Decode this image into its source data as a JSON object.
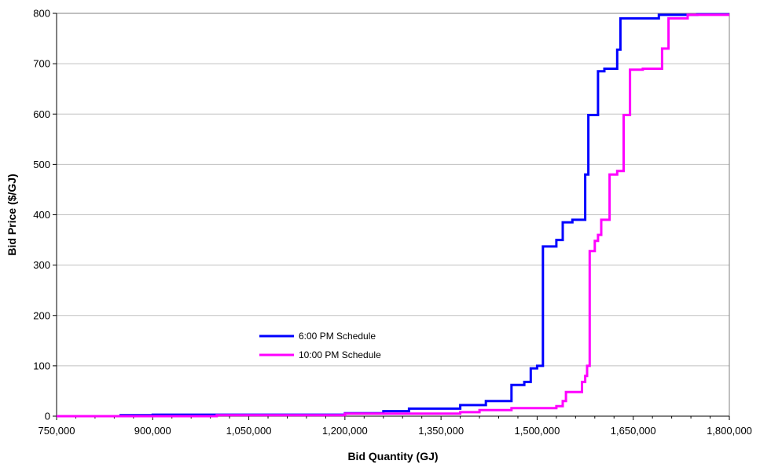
{
  "chart_data": {
    "type": "line",
    "title": "",
    "xlabel": "Bid Quantity (GJ)",
    "ylabel": "Bid Price ($/GJ)",
    "xlim": [
      750000,
      1800000
    ],
    "ylim": [
      0,
      800
    ],
    "x_ticks": [
      750000,
      900000,
      1050000,
      1200000,
      1350000,
      1500000,
      1650000,
      1800000
    ],
    "x_tick_labels": [
      "750,000",
      "900,000",
      "1,050,000",
      "1,200,000",
      "1,350,000",
      "1,500,000",
      "1,650,000",
      "1,800,000"
    ],
    "y_ticks": [
      0,
      100,
      200,
      300,
      400,
      500,
      600,
      700,
      800
    ],
    "y_tick_labels": [
      "0",
      "100",
      "200",
      "300",
      "400",
      "500",
      "600",
      "700",
      "800"
    ],
    "grid": "horizontal",
    "legend_position": "center-left",
    "step": true,
    "series": [
      {
        "name": "6:00 PM Schedule",
        "color": "#0000FF",
        "x": [
          750000,
          850000,
          850000,
          900000,
          900000,
          1200000,
          1200000,
          1260000,
          1260000,
          1300000,
          1300000,
          1380000,
          1380000,
          1420000,
          1420000,
          1460000,
          1460000,
          1480000,
          1480000,
          1490000,
          1490000,
          1500000,
          1500000,
          1509000,
          1509000,
          1530000,
          1530000,
          1540000,
          1540000,
          1555000,
          1555000,
          1575000,
          1575000,
          1580000,
          1580000,
          1595000,
          1595000,
          1605000,
          1605000,
          1625000,
          1625000,
          1630000,
          1630000,
          1690000,
          1690000,
          1750000,
          1750000,
          1800000
        ],
        "y": [
          0,
          0,
          2,
          2,
          3,
          3,
          6,
          6,
          10,
          10,
          15,
          15,
          22,
          22,
          30,
          30,
          62,
          62,
          68,
          68,
          95,
          95,
          100,
          100,
          337,
          337,
          350,
          350,
          385,
          385,
          390,
          390,
          480,
          480,
          598,
          598,
          685,
          685,
          690,
          690,
          728,
          728,
          790,
          790,
          797,
          797,
          798,
          798
        ]
      },
      {
        "name": "10:00 PM Schedule",
        "color": "#FF00FF",
        "x": [
          750000,
          1000000,
          1000000,
          1200000,
          1200000,
          1380000,
          1380000,
          1410000,
          1410000,
          1460000,
          1460000,
          1530000,
          1530000,
          1540000,
          1540000,
          1545000,
          1545000,
          1570000,
          1570000,
          1575000,
          1575000,
          1578000,
          1578000,
          1582000,
          1582000,
          1590000,
          1590000,
          1595000,
          1595000,
          1600000,
          1600000,
          1613000,
          1613000,
          1625000,
          1625000,
          1635000,
          1635000,
          1645000,
          1645000,
          1665000,
          1665000,
          1695000,
          1695000,
          1705000,
          1705000,
          1735000,
          1735000,
          1800000
        ],
        "y": [
          0,
          0,
          2,
          2,
          5,
          5,
          8,
          8,
          12,
          12,
          16,
          16,
          20,
          20,
          30,
          30,
          48,
          48,
          68,
          68,
          80,
          80,
          100,
          100,
          328,
          328,
          348,
          348,
          360,
          360,
          390,
          390,
          480,
          480,
          487,
          487,
          598,
          598,
          688,
          688,
          690,
          690,
          730,
          730,
          790,
          790,
          797,
          797
        ]
      }
    ]
  }
}
